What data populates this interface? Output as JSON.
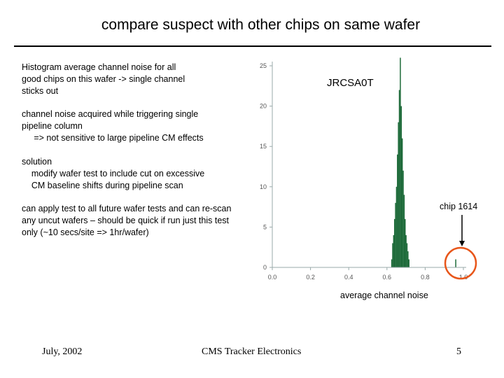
{
  "title": "compare suspect with other chips on same wafer",
  "paragraphs": {
    "p1": [
      "Histogram average channel noise for all",
      "good chips on this wafer -> single channel",
      "sticks out"
    ],
    "p2": [
      "channel noise acquired while triggering single",
      "pipeline column",
      "     => not sensitive to large pipeline CM effects"
    ],
    "p3": [
      "solution",
      "    modify wafer test to include cut on excessive",
      "    CM baseline shifts during pipeline scan"
    ],
    "p4": [
      "can apply test to all future wafer tests and can re-scan",
      "any uncut wafers – should be quick if run just this test",
      "only (~10 secs/site => 1hr/wafer)"
    ]
  },
  "footer": {
    "date": "July, 2002",
    "center": "CMS Tracker Electronics",
    "page": "5"
  },
  "chart_data": {
    "type": "bar",
    "title": "JRCSA0T",
    "xlabel": "average channel noise",
    "ylabel": "",
    "xlim": [
      0.0,
      1.0
    ],
    "ylim": [
      0,
      25
    ],
    "xticks": [
      "0.0",
      "0.2",
      "0.4",
      "0.6",
      "0.8",
      "1.0"
    ],
    "yticks": [
      "0",
      "5",
      "10",
      "15",
      "20",
      "25"
    ],
    "bar_color": "#1e6b3a",
    "series": [
      {
        "x": [
          0.625,
          0.63,
          0.635,
          0.64,
          0.645,
          0.65,
          0.655,
          0.66,
          0.665,
          0.67,
          0.675,
          0.68,
          0.685,
          0.69,
          0.695,
          0.7,
          0.705,
          0.71,
          0.715,
          0.96
        ],
        "values": [
          1,
          3,
          4,
          6,
          8,
          10,
          14,
          18,
          22,
          26,
          20,
          16,
          12,
          9,
          6,
          4,
          3,
          2,
          1,
          1
        ]
      }
    ],
    "annotation": {
      "text": "chip 1614",
      "x": 0.96,
      "highlight_color": "#e8561a"
    }
  }
}
